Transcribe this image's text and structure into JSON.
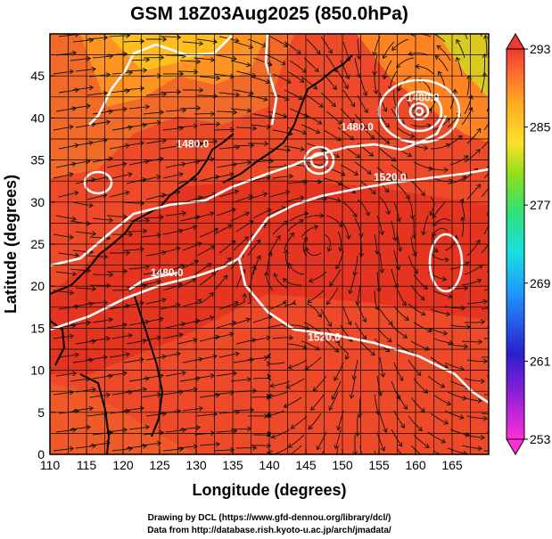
{
  "title": "GSM 18Z03Aug2025 (850.0hPa)",
  "x_axis": {
    "label": "Longitude (degrees)",
    "ticks": [
      "110",
      "115",
      "120",
      "125",
      "130",
      "135",
      "140",
      "145",
      "150",
      "155",
      "160",
      "165"
    ],
    "range": [
      110,
      170
    ]
  },
  "y_axis": {
    "label": "Latitude  (degrees)",
    "ticks": [
      "0",
      "5",
      "10",
      "15",
      "20",
      "25",
      "30",
      "35",
      "40",
      "45"
    ],
    "range": [
      0,
      50
    ]
  },
  "colorbar": {
    "labels": [
      "293",
      "285",
      "277",
      "269",
      "261",
      "253"
    ],
    "range": [
      253,
      293
    ],
    "colors": [
      "#ff2fd8",
      "#2a1fd0",
      "#1e9bff",
      "#19e0e0",
      "#2fe07a",
      "#8fe01a",
      "#ffe02a",
      "#ffab20",
      "#ff6a30",
      "#ee3a30"
    ]
  },
  "contour_labels": [
    {
      "text": "1480.0",
      "lon": 152.0,
      "lat": 38.5
    },
    {
      "text": "1520.0",
      "lon": 156.5,
      "lat": 32.5
    },
    {
      "text": "1480.0",
      "lon": 161.0,
      "lat": 42.0
    },
    {
      "text": "1480.0",
      "lon": 129.5,
      "lat": 36.5
    },
    {
      "text": "1480.0",
      "lon": 126.0,
      "lat": 21.2
    },
    {
      "text": "1520.0",
      "lon": 147.5,
      "lat": 13.5
    }
  ],
  "credits": {
    "line1": "Drawing by DCL (https://www.gfd-dennou.org/library/dcl/)",
    "line2": "Data from http://database.rish.kyoto-u.ac.jp/arch/jmadata/"
  }
}
